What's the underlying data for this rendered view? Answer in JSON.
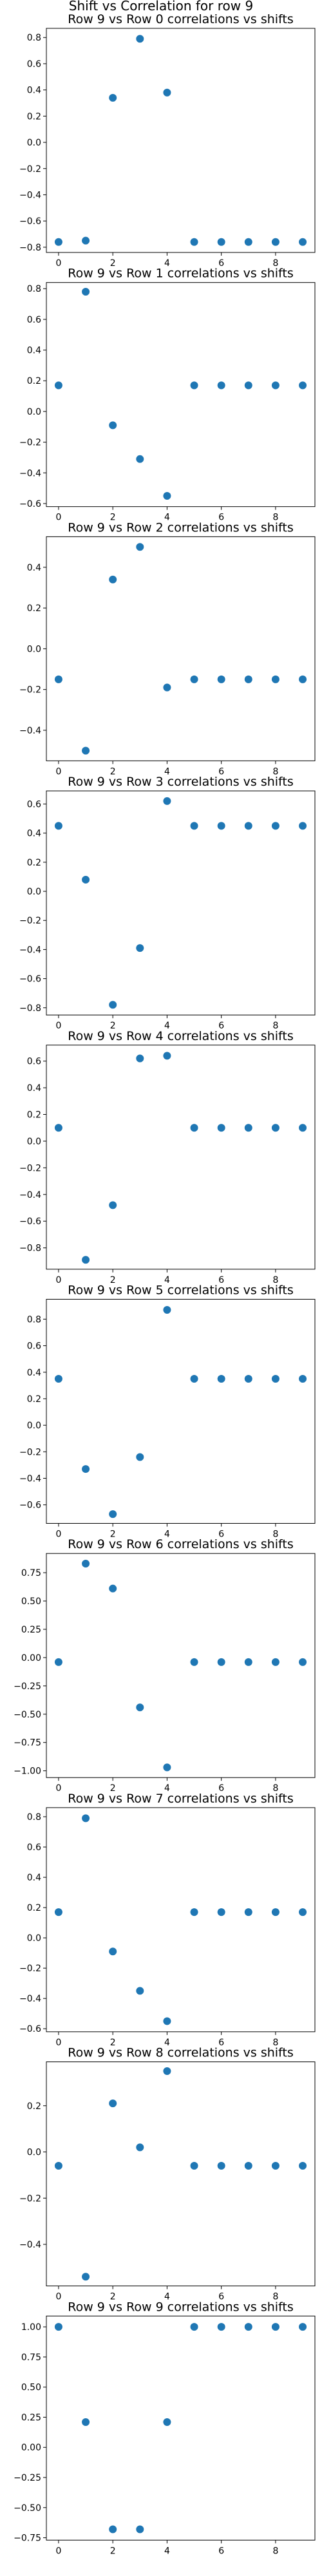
{
  "suptitle": "Shift vs Correlation for row 9",
  "point_color": "#1f77b4",
  "chart_data": [
    {
      "type": "scatter",
      "title": "Row 9 vs Row 0 correlations vs shifts",
      "x": [
        0,
        1,
        2,
        3,
        4,
        5,
        6,
        7,
        8,
        9
      ],
      "y": [
        -0.76,
        -0.75,
        0.34,
        0.79,
        0.38,
        -0.76,
        -0.76,
        -0.76,
        -0.76,
        -0.76
      ],
      "xlim": [
        -0.45,
        9.45
      ],
      "ylim": [
        -0.84,
        0.87
      ],
      "xticks": [
        0,
        2,
        4,
        6,
        8
      ],
      "xtick_labels": [
        "0",
        "2",
        "4",
        "6",
        "8"
      ],
      "yticks": [
        -0.8,
        -0.6,
        -0.4,
        -0.2,
        0.0,
        0.2,
        0.4,
        0.6,
        0.8
      ],
      "ytick_labels": [
        "−0.8",
        "−0.6",
        "−0.4",
        "−0.2",
        "0.0",
        "0.2",
        "0.4",
        "0.6",
        "0.8"
      ]
    },
    {
      "type": "scatter",
      "title": "Row 9 vs Row 1 correlations vs shifts",
      "x": [
        0,
        1,
        2,
        3,
        4,
        5,
        6,
        7,
        8,
        9
      ],
      "y": [
        0.17,
        0.78,
        -0.09,
        -0.31,
        -0.55,
        0.17,
        0.17,
        0.17,
        0.17,
        0.17
      ],
      "xlim": [
        -0.45,
        9.45
      ],
      "ylim": [
        -0.62,
        0.84
      ],
      "xticks": [
        0,
        2,
        4,
        6,
        8
      ],
      "xtick_labels": [
        "0",
        "2",
        "4",
        "6",
        "8"
      ],
      "yticks": [
        -0.6,
        -0.4,
        -0.2,
        0.0,
        0.2,
        0.4,
        0.6,
        0.8
      ],
      "ytick_labels": [
        "−0.6",
        "−0.4",
        "−0.2",
        "0.0",
        "0.2",
        "0.4",
        "0.6",
        "0.8"
      ]
    },
    {
      "type": "scatter",
      "title": "Row 9 vs Row 2 correlations vs shifts",
      "x": [
        0,
        1,
        2,
        3,
        4,
        5,
        6,
        7,
        8,
        9
      ],
      "y": [
        -0.15,
        -0.5,
        0.34,
        0.5,
        -0.19,
        -0.15,
        -0.15,
        -0.15,
        -0.15,
        -0.15
      ],
      "xlim": [
        -0.45,
        9.45
      ],
      "ylim": [
        -0.55,
        0.55
      ],
      "xticks": [
        0,
        2,
        4,
        6,
        8
      ],
      "xtick_labels": [
        "0",
        "2",
        "4",
        "6",
        "8"
      ],
      "yticks": [
        -0.4,
        -0.2,
        0.0,
        0.2,
        0.4
      ],
      "ytick_labels": [
        "−0.4",
        "−0.2",
        "0.0",
        "0.2",
        "0.4"
      ]
    },
    {
      "type": "scatter",
      "title": "Row 9 vs Row 3 correlations vs shifts",
      "x": [
        0,
        1,
        2,
        3,
        4,
        5,
        6,
        7,
        8,
        9
      ],
      "y": [
        0.45,
        0.08,
        -0.78,
        -0.39,
        0.62,
        0.45,
        0.45,
        0.45,
        0.45,
        0.45
      ],
      "xlim": [
        -0.45,
        9.45
      ],
      "ylim": [
        -0.85,
        0.69
      ],
      "xticks": [
        0,
        2,
        4,
        6,
        8
      ],
      "xtick_labels": [
        "0",
        "2",
        "4",
        "6",
        "8"
      ],
      "yticks": [
        -0.8,
        -0.6,
        -0.4,
        -0.2,
        0.0,
        0.2,
        0.4,
        0.6
      ],
      "ytick_labels": [
        "−0.8",
        "−0.6",
        "−0.4",
        "−0.2",
        "0.0",
        "0.2",
        "0.4",
        "0.6"
      ]
    },
    {
      "type": "scatter",
      "title": "Row 9 vs Row 4 correlations vs shifts",
      "x": [
        0,
        1,
        2,
        3,
        4,
        5,
        6,
        7,
        8,
        9
      ],
      "y": [
        0.1,
        -0.89,
        -0.48,
        0.62,
        0.64,
        0.1,
        0.1,
        0.1,
        0.1,
        0.1
      ],
      "xlim": [
        -0.45,
        9.45
      ],
      "ylim": [
        -0.96,
        0.72
      ],
      "xticks": [
        0,
        2,
        4,
        6,
        8
      ],
      "xtick_labels": [
        "0",
        "2",
        "4",
        "6",
        "8"
      ],
      "yticks": [
        -0.8,
        -0.6,
        -0.4,
        -0.2,
        0.0,
        0.2,
        0.4,
        0.6
      ],
      "ytick_labels": [
        "−0.8",
        "−0.6",
        "−0.4",
        "−0.2",
        "0.0",
        "0.2",
        "0.4",
        "0.6"
      ]
    },
    {
      "type": "scatter",
      "title": "Row 9 vs Row 5 correlations vs shifts",
      "x": [
        0,
        1,
        2,
        3,
        4,
        5,
        6,
        7,
        8,
        9
      ],
      "y": [
        0.35,
        -0.33,
        -0.67,
        -0.24,
        0.87,
        0.35,
        0.35,
        0.35,
        0.35,
        0.35
      ],
      "xlim": [
        -0.45,
        9.45
      ],
      "ylim": [
        -0.74,
        0.95
      ],
      "xticks": [
        0,
        2,
        4,
        6,
        8
      ],
      "xtick_labels": [
        "0",
        "2",
        "4",
        "6",
        "8"
      ],
      "yticks": [
        -0.6,
        -0.4,
        -0.2,
        0.0,
        0.2,
        0.4,
        0.6,
        0.8
      ],
      "ytick_labels": [
        "−0.6",
        "−0.4",
        "−0.2",
        "0.0",
        "0.2",
        "0.4",
        "0.6",
        "0.8"
      ]
    },
    {
      "type": "scatter",
      "title": "Row 9 vs Row 6 correlations vs shifts",
      "x": [
        0,
        1,
        2,
        3,
        4,
        5,
        6,
        7,
        8,
        9
      ],
      "y": [
        -0.04,
        0.83,
        0.61,
        -0.44,
        -0.97,
        -0.04,
        -0.04,
        -0.04,
        -0.04,
        -0.04
      ],
      "xlim": [
        -0.45,
        9.45
      ],
      "ylim": [
        -1.06,
        0.92
      ],
      "xticks": [
        0,
        2,
        4,
        6,
        8
      ],
      "xtick_labels": [
        "0",
        "2",
        "4",
        "6",
        "8"
      ],
      "yticks": [
        -1.0,
        -0.75,
        -0.5,
        -0.25,
        0.0,
        0.25,
        0.5,
        0.75
      ],
      "ytick_labels": [
        "−1.00",
        "−0.75",
        "−0.50",
        "−0.25",
        "0.00",
        "0.25",
        "0.50",
        "0.75"
      ]
    },
    {
      "type": "scatter",
      "title": "Row 9 vs Row 7 correlations vs shifts",
      "x": [
        0,
        1,
        2,
        3,
        4,
        5,
        6,
        7,
        8,
        9
      ],
      "y": [
        0.17,
        0.79,
        -0.09,
        -0.35,
        -0.55,
        0.17,
        0.17,
        0.17,
        0.17,
        0.17
      ],
      "xlim": [
        -0.45,
        9.45
      ],
      "ylim": [
        -0.62,
        0.86
      ],
      "xticks": [
        0,
        2,
        4,
        6,
        8
      ],
      "xtick_labels": [
        "0",
        "2",
        "4",
        "6",
        "8"
      ],
      "yticks": [
        -0.6,
        -0.4,
        -0.2,
        0.0,
        0.2,
        0.4,
        0.6,
        0.8
      ],
      "ytick_labels": [
        "−0.6",
        "−0.4",
        "−0.2",
        "0.0",
        "0.2",
        "0.4",
        "0.6",
        "0.8"
      ]
    },
    {
      "type": "scatter",
      "title": "Row 9 vs Row 8 correlations vs shifts",
      "x": [
        0,
        1,
        2,
        3,
        4,
        5,
        6,
        7,
        8,
        9
      ],
      "y": [
        -0.06,
        -0.54,
        0.21,
        0.02,
        0.35,
        -0.06,
        -0.06,
        -0.06,
        -0.06,
        -0.06
      ],
      "xlim": [
        -0.45,
        9.45
      ],
      "ylim": [
        -0.58,
        0.39
      ],
      "xticks": [
        0,
        2,
        4,
        6,
        8
      ],
      "xtick_labels": [
        "0",
        "2",
        "4",
        "6",
        "8"
      ],
      "yticks": [
        -0.4,
        -0.2,
        0.0,
        0.2
      ],
      "ytick_labels": [
        "−0.4",
        "−0.2",
        "0.0",
        "0.2"
      ]
    },
    {
      "type": "scatter",
      "title": "Row 9 vs Row 9 correlations vs shifts",
      "x": [
        0,
        1,
        2,
        3,
        4,
        5,
        6,
        7,
        8,
        9
      ],
      "y": [
        1.0,
        0.21,
        -0.68,
        -0.68,
        0.21,
        1.0,
        1.0,
        1.0,
        1.0,
        1.0
      ],
      "xlim": [
        -0.45,
        9.45
      ],
      "ylim": [
        -0.77,
        1.09
      ],
      "xticks": [
        0,
        2,
        4,
        6,
        8
      ],
      "xtick_labels": [
        "0",
        "2",
        "4",
        "6",
        "8"
      ],
      "yticks": [
        -0.75,
        -0.5,
        -0.25,
        0.0,
        0.25,
        0.5,
        0.75,
        1.0
      ],
      "ytick_labels": [
        "−0.75",
        "−0.50",
        "−0.25",
        "0.00",
        "0.25",
        "0.50",
        "0.75",
        "1.00"
      ]
    }
  ]
}
